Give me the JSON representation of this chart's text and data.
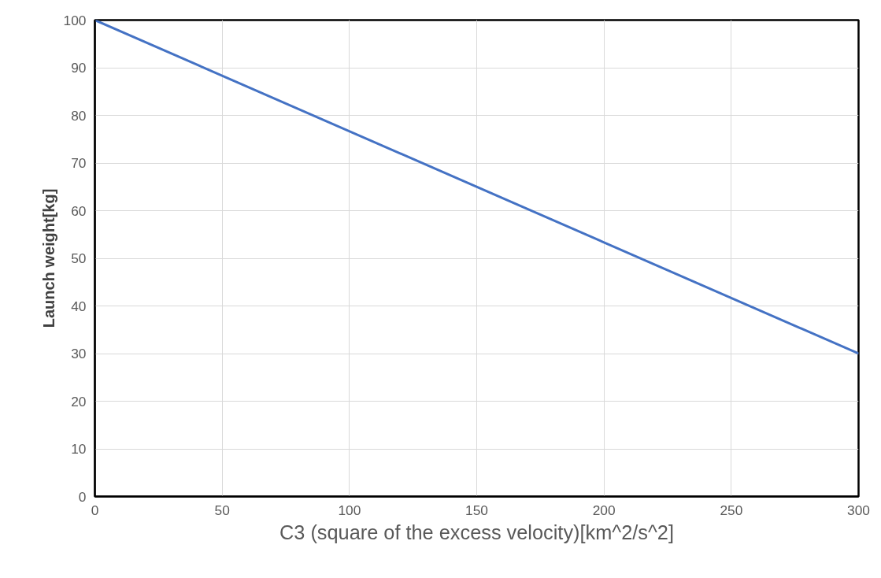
{
  "chart_data": {
    "type": "line",
    "xlabel": "C3 (square of the excess velocity)[km^2/s^2]",
    "ylabel": "Launch weight[kg]",
    "x": [
      0,
      300
    ],
    "series": [
      {
        "color": "#4472c4",
        "values": [
          100,
          30
        ]
      }
    ],
    "xlim": [
      0,
      300
    ],
    "ylim": [
      0,
      100
    ],
    "xticks": [
      0,
      50,
      100,
      150,
      200,
      250,
      300
    ],
    "yticks": [
      0,
      10,
      20,
      30,
      40,
      50,
      60,
      70,
      80,
      90,
      100
    ],
    "grid": true
  }
}
